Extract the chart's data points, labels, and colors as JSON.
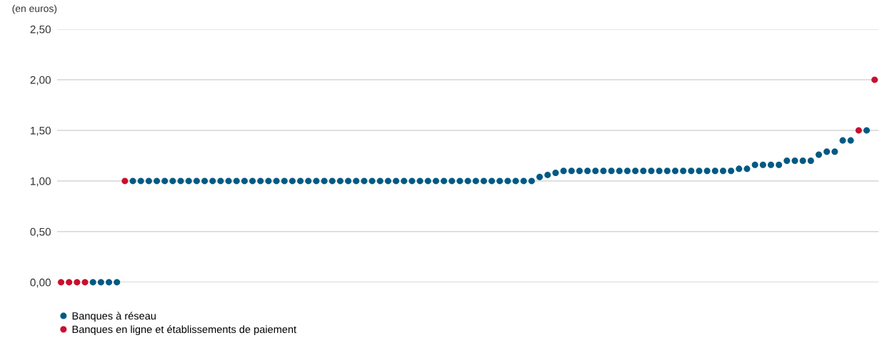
{
  "chart_data": {
    "type": "scatter",
    "ylabel": "(en euros)",
    "categories": [
      null,
      null,
      null,
      null,
      null,
      null,
      null,
      null,
      null,
      null,
      null,
      null,
      null,
      null,
      null,
      null,
      null,
      null,
      null,
      null,
      null,
      null,
      null,
      null,
      null,
      null,
      null,
      null,
      null,
      null,
      null,
      null,
      null,
      null,
      null,
      null,
      null,
      null,
      null,
      null,
      null,
      null,
      null,
      null,
      null,
      null,
      null,
      null,
      null,
      null,
      null,
      null,
      null,
      null,
      null,
      null,
      null,
      null,
      null,
      null,
      null,
      null,
      null,
      null,
      null,
      null,
      null,
      null,
      null,
      null,
      null,
      null,
      null,
      null,
      null,
      null,
      null,
      null,
      null,
      null,
      null,
      null,
      null,
      null,
      null,
      null,
      null,
      null,
      null,
      null,
      null,
      null,
      null,
      null,
      null,
      null,
      null,
      null,
      null,
      null,
      null,
      null,
      null
    ],
    "series": [
      {
        "name": "Banques à réseau",
        "color": "#005a84",
        "values": [
          null,
          null,
          null,
          null,
          0,
          0,
          0,
          0,
          null,
          1,
          1,
          1,
          1,
          1,
          1,
          1,
          1,
          1,
          1,
          1,
          1,
          1,
          1,
          1,
          1,
          1,
          1,
          1,
          1,
          1,
          1,
          1,
          1,
          1,
          1,
          1,
          1,
          1,
          1,
          1,
          1,
          1,
          1,
          1,
          1,
          1,
          1,
          1,
          1,
          1,
          1,
          1,
          1,
          1,
          1,
          1,
          1,
          1,
          1,
          1,
          1.04,
          1.06,
          1.08,
          1.1,
          1.1,
          1.1,
          1.1,
          1.1,
          1.1,
          1.1,
          1.1,
          1.1,
          1.1,
          1.1,
          1.1,
          1.1,
          1.1,
          1.1,
          1.1,
          1.1,
          1.1,
          1.1,
          1.1,
          1.1,
          1.1,
          1.12,
          1.12,
          1.16,
          1.16,
          1.16,
          1.16,
          1.2,
          1.2,
          1.2,
          1.2,
          1.26,
          1.29,
          1.29,
          1.4,
          1.4,
          null,
          1.5,
          null
        ]
      },
      {
        "name": "Banques en ligne et établissements de paiement",
        "color": "#c8102e",
        "values": [
          0,
          0,
          0,
          0,
          null,
          null,
          null,
          null,
          1,
          null,
          null,
          null,
          null,
          null,
          null,
          null,
          null,
          null,
          null,
          null,
          null,
          null,
          null,
          null,
          null,
          null,
          null,
          null,
          null,
          null,
          null,
          null,
          null,
          null,
          null,
          null,
          null,
          null,
          null,
          null,
          null,
          null,
          null,
          null,
          null,
          null,
          null,
          null,
          null,
          null,
          null,
          null,
          null,
          null,
          null,
          null,
          null,
          null,
          null,
          null,
          null,
          null,
          null,
          null,
          null,
          null,
          null,
          null,
          null,
          null,
          null,
          null,
          null,
          null,
          null,
          null,
          null,
          null,
          null,
          null,
          null,
          null,
          null,
          null,
          null,
          null,
          null,
          null,
          null,
          null,
          null,
          null,
          null,
          null,
          null,
          null,
          null,
          null,
          null,
          null,
          1.5,
          null,
          2
        ]
      }
    ],
    "ylim": [
      0,
      2.5
    ],
    "yticks": [
      {
        "value": 0,
        "label": "0,00"
      },
      {
        "value": 0.5,
        "label": "0,50"
      },
      {
        "value": 1,
        "label": "1,00"
      },
      {
        "value": 1.5,
        "label": "1,50"
      },
      {
        "value": 2,
        "label": "2,00"
      },
      {
        "value": 2.5,
        "label": "2,50"
      }
    ],
    "grid": "y",
    "legend": "bottom left",
    "marker": "circle"
  }
}
